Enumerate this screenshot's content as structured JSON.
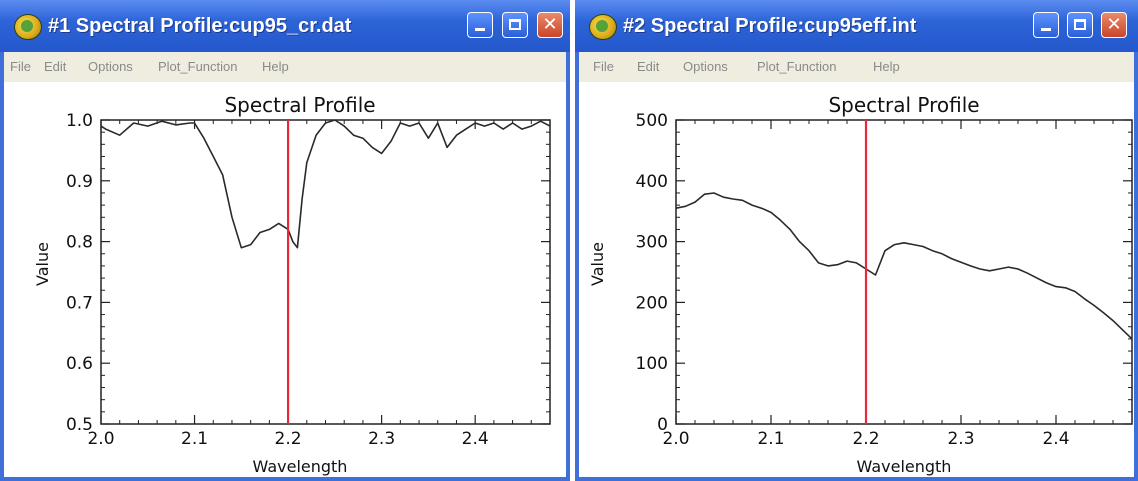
{
  "windows": [
    {
      "title": "#1 Spectral Profile:cup95_cr.dat",
      "menu": [
        "File",
        "Edit",
        "Options",
        "Plot_Function",
        "Help"
      ],
      "controls": {
        "minimize": "minimize-icon",
        "maximize": "maximize-icon",
        "close": "close-icon"
      }
    },
    {
      "title": "#2 Spectral Profile:cup95eff.int",
      "menu": [
        "File",
        "Edit",
        "Options",
        "Plot_Function",
        "Help"
      ],
      "controls": {
        "minimize": "minimize-icon",
        "maximize": "maximize-icon",
        "close": "close-icon"
      }
    }
  ],
  "chart_data": [
    {
      "type": "line",
      "title": "Spectral Profile",
      "xlabel": "Wavelength",
      "ylabel": "Value",
      "xlim": [
        2.0,
        2.48
      ],
      "ylim": [
        0.5,
        1.0
      ],
      "xticks": [
        2.0,
        2.1,
        2.2,
        2.3,
        2.4
      ],
      "xticklabels": [
        "2.0",
        "2.1",
        "2.2",
        "2.3",
        "2.4"
      ],
      "yticks": [
        0.5,
        0.6,
        0.7,
        0.8,
        0.9,
        1.0
      ],
      "yticklabels": [
        "0.5",
        "0.6",
        "0.7",
        "0.8",
        "0.9",
        "1.0"
      ],
      "marker_x": 2.2,
      "marker_color": "#e8283a",
      "line_color": "#2a2a2a",
      "series": [
        {
          "x": [
            2.0,
            2.005,
            2.02,
            2.035,
            2.05,
            2.065,
            2.08,
            2.095,
            2.1,
            2.11,
            2.12,
            2.13,
            2.14,
            2.15,
            2.16,
            2.17,
            2.18,
            2.19,
            2.2,
            2.205,
            2.21,
            2.215,
            2.22,
            2.23,
            2.24,
            2.25,
            2.26,
            2.27,
            2.28,
            2.29,
            2.3,
            2.31,
            2.32,
            2.33,
            2.34,
            2.35,
            2.36,
            2.37,
            2.38,
            2.39,
            2.4,
            2.41,
            2.42,
            2.43,
            2.44,
            2.45,
            2.46,
            2.47,
            2.48
          ],
          "y": [
            0.99,
            0.985,
            0.975,
            0.995,
            0.99,
            0.998,
            0.992,
            0.995,
            0.995,
            0.97,
            0.94,
            0.91,
            0.84,
            0.79,
            0.795,
            0.815,
            0.82,
            0.83,
            0.82,
            0.8,
            0.79,
            0.87,
            0.93,
            0.975,
            0.995,
            1.0,
            0.99,
            0.975,
            0.97,
            0.955,
            0.945,
            0.965,
            0.995,
            0.99,
            0.995,
            0.97,
            0.995,
            0.955,
            0.975,
            0.985,
            0.995,
            0.99,
            0.995,
            0.985,
            0.995,
            0.985,
            0.99,
            0.998,
            0.99
          ]
        }
      ]
    },
    {
      "type": "line",
      "title": "Spectral Profile",
      "xlabel": "Wavelength",
      "ylabel": "Value",
      "xlim": [
        2.0,
        2.48
      ],
      "ylim": [
        0,
        500
      ],
      "xticks": [
        2.0,
        2.1,
        2.2,
        2.3,
        2.4
      ],
      "xticklabels": [
        "2.0",
        "2.1",
        "2.2",
        "2.3",
        "2.4"
      ],
      "yticks": [
        0,
        100,
        200,
        300,
        400,
        500
      ],
      "yticklabels": [
        "0",
        "100",
        "200",
        "300",
        "400",
        "500"
      ],
      "marker_x": 2.2,
      "marker_color": "#e8283a",
      "line_color": "#2a2a2a",
      "series": [
        {
          "x": [
            2.0,
            2.01,
            2.02,
            2.03,
            2.04,
            2.05,
            2.06,
            2.07,
            2.08,
            2.09,
            2.1,
            2.11,
            2.12,
            2.13,
            2.14,
            2.15,
            2.16,
            2.17,
            2.18,
            2.19,
            2.2,
            2.205,
            2.21,
            2.22,
            2.23,
            2.24,
            2.25,
            2.26,
            2.27,
            2.28,
            2.29,
            2.3,
            2.31,
            2.32,
            2.33,
            2.34,
            2.35,
            2.36,
            2.37,
            2.38,
            2.39,
            2.4,
            2.41,
            2.42,
            2.43,
            2.44,
            2.45,
            2.46,
            2.47,
            2.48
          ],
          "y": [
            355,
            358,
            365,
            378,
            380,
            373,
            370,
            368,
            360,
            355,
            348,
            335,
            320,
            300,
            285,
            265,
            260,
            262,
            268,
            265,
            255,
            250,
            245,
            285,
            295,
            298,
            295,
            292,
            285,
            280,
            272,
            266,
            260,
            255,
            252,
            255,
            258,
            255,
            248,
            240,
            232,
            226,
            224,
            218,
            206,
            195,
            183,
            170,
            155,
            140
          ]
        }
      ]
    }
  ]
}
